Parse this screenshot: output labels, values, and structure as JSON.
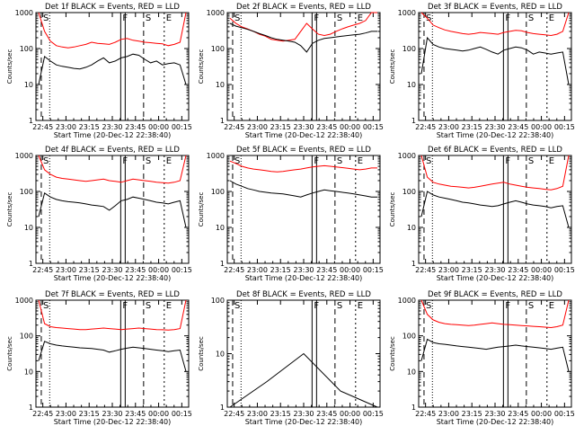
{
  "figure": {
    "background": "#ffffff",
    "axis_color": "#000000",
    "events_color": "#000000",
    "lld_color": "#ff0000"
  },
  "chart_data": [
    {
      "type": "line",
      "panel": "det-1f",
      "title": "Det 1f BLACK = Events, RED = LLD",
      "xlabel": "Start Time (20-Dec-12 22:38:40)",
      "ylabel": "Counts/sec",
      "x_ticks": [
        "22:45",
        "23:00",
        "23:15",
        "23:30",
        "23:45",
        "00:00",
        "00:15"
      ],
      "y_ticks": [
        "1",
        "10",
        "100",
        "1000"
      ],
      "ylim": [
        1,
        1000
      ],
      "yscale": "log",
      "markers": [
        "S",
        "F",
        "S",
        "E"
      ],
      "series": [
        {
          "color": "#ff0000",
          "values": [
            1000,
            300,
            160,
            120,
            110,
            105,
            110,
            120,
            130,
            150,
            140,
            135,
            130,
            150,
            180,
            190,
            170,
            160,
            150,
            145,
            140,
            135,
            120,
            130,
            150,
            1000
          ]
        },
        {
          "color": "#000000",
          "values": [
            10,
            60,
            45,
            35,
            32,
            30,
            28,
            27,
            30,
            35,
            45,
            55,
            40,
            45,
            55,
            60,
            70,
            65,
            50,
            40,
            45,
            35,
            38,
            40,
            35,
            10
          ]
        }
      ]
    },
    {
      "type": "line",
      "panel": "det-2f",
      "title": "Det 2f BLACK = Events, RED = LLD",
      "xlabel": "Start Time (20-Dec-12 22:38:40)",
      "ylabel": "Counts/sec",
      "x_ticks": [
        "22:45",
        "23:00",
        "23:15",
        "23:30",
        "23:45",
        "00:00",
        "00:15"
      ],
      "y_ticks": [
        "1",
        "10",
        "100",
        "1000"
      ],
      "ylim": [
        1,
        1000
      ],
      "yscale": "log",
      "markers": [
        "S",
        "F",
        "S",
        "E"
      ],
      "series": [
        {
          "color": "#ff0000",
          "values": [
            700,
            500,
            400,
            350,
            300,
            250,
            220,
            180,
            170,
            160,
            170,
            180,
            300,
            500,
            350,
            250,
            230,
            250,
            300,
            350,
            400,
            450,
            500,
            600,
            1000,
            1000
          ]
        },
        {
          "color": "#000000",
          "values": [
            500,
            420,
            380,
            340,
            300,
            260,
            230,
            200,
            180,
            170,
            160,
            150,
            120,
            80,
            140,
            170,
            190,
            200,
            210,
            220,
            230,
            240,
            250,
            270,
            300,
            300
          ]
        }
      ]
    },
    {
      "type": "line",
      "panel": "det-3f",
      "title": "Det 3f BLACK = Events, RED = LLD",
      "xlabel": "Start Time (20-Dec-12 22:38:40)",
      "ylabel": "Counts/sec",
      "x_ticks": [
        "22:45",
        "23:00",
        "23:15",
        "23:30",
        "23:45",
        "00:00",
        "00:15"
      ],
      "y_ticks": [
        "1",
        "10",
        "100",
        "1000"
      ],
      "ylim": [
        1,
        1000
      ],
      "yscale": "log",
      "markers": [
        "S",
        "F",
        "S",
        "E"
      ],
      "series": [
        {
          "color": "#ff0000",
          "values": [
            1000,
            700,
            450,
            380,
            330,
            300,
            280,
            260,
            250,
            260,
            280,
            270,
            260,
            250,
            280,
            300,
            320,
            310,
            280,
            260,
            250,
            240,
            230,
            250,
            300,
            1000
          ]
        },
        {
          "color": "#000000",
          "values": [
            20,
            200,
            130,
            110,
            100,
            95,
            90,
            85,
            90,
            100,
            110,
            95,
            80,
            70,
            90,
            100,
            110,
            105,
            90,
            70,
            80,
            75,
            70,
            75,
            80,
            10
          ]
        }
      ]
    },
    {
      "type": "line",
      "panel": "det-4f",
      "title": "Det 4f BLACK = Events, RED = LLD",
      "xlabel": "Start Time (20-Dec-12 22:38:40)",
      "ylabel": "Counts/sec",
      "x_ticks": [
        "22:45",
        "23:00",
        "23:15",
        "23:30",
        "23:45",
        "00:00",
        "00:15"
      ],
      "y_ticks": [
        "1",
        "10",
        "100",
        "1000"
      ],
      "ylim": [
        1,
        1000
      ],
      "yscale": "log",
      "markers": [
        "S",
        "F",
        "S",
        "E"
      ],
      "series": [
        {
          "color": "#ff0000",
          "values": [
            1000,
            400,
            300,
            250,
            230,
            220,
            210,
            200,
            190,
            200,
            210,
            220,
            200,
            190,
            180,
            200,
            220,
            210,
            200,
            190,
            180,
            175,
            170,
            180,
            200,
            1000
          ]
        },
        {
          "color": "#000000",
          "values": [
            20,
            90,
            70,
            60,
            55,
            52,
            50,
            48,
            45,
            42,
            40,
            38,
            30,
            40,
            55,
            60,
            70,
            65,
            60,
            55,
            50,
            48,
            45,
            50,
            55,
            10
          ]
        }
      ]
    },
    {
      "type": "line",
      "panel": "det-5f",
      "title": "Det 5f BLACK = Events, RED = LLD",
      "xlabel": "Start Time (20-Dec-12 22:38:40)",
      "ylabel": "Counts/sec",
      "x_ticks": [
        "22:45",
        "23:00",
        "23:15",
        "23:30",
        "23:45",
        "00:00",
        "00:15"
      ],
      "y_ticks": [
        "1",
        "10",
        "100",
        "1000"
      ],
      "ylim": [
        1,
        1000
      ],
      "yscale": "log",
      "markers": [
        "S",
        "F",
        "S",
        "E"
      ],
      "series": [
        {
          "color": "#ff0000",
          "values": [
            700,
            600,
            500,
            450,
            420,
            400,
            380,
            360,
            350,
            360,
            380,
            400,
            420,
            450,
            480,
            500,
            520,
            500,
            480,
            460,
            440,
            420,
            400,
            420,
            450,
            450
          ]
        },
        {
          "color": "#000000",
          "values": [
            200,
            160,
            140,
            120,
            110,
            100,
            95,
            90,
            88,
            85,
            80,
            75,
            70,
            80,
            90,
            100,
            110,
            105,
            100,
            95,
            90,
            85,
            80,
            75,
            70,
            70
          ]
        }
      ]
    },
    {
      "type": "line",
      "panel": "det-6f",
      "title": "Det 6f BLACK = Events, RED = LLD",
      "xlabel": "Start Time (20-Dec-12 22:38:40)",
      "ylabel": "Counts/sec",
      "x_ticks": [
        "22:45",
        "23:00",
        "23:15",
        "23:30",
        "23:45",
        "00:00",
        "00:15"
      ],
      "y_ticks": [
        "1",
        "10",
        "100",
        "1000"
      ],
      "ylim": [
        1,
        1000
      ],
      "yscale": "log",
      "markers": [
        "S",
        "F",
        "S",
        "E"
      ],
      "series": [
        {
          "color": "#ff0000",
          "values": [
            1000,
            250,
            180,
            160,
            150,
            140,
            135,
            130,
            125,
            130,
            140,
            150,
            160,
            170,
            180,
            160,
            150,
            140,
            130,
            125,
            120,
            115,
            110,
            120,
            140,
            1000
          ]
        },
        {
          "color": "#000000",
          "values": [
            20,
            100,
            80,
            70,
            65,
            60,
            55,
            50,
            48,
            45,
            42,
            40,
            38,
            40,
            45,
            50,
            55,
            50,
            45,
            42,
            40,
            38,
            35,
            38,
            40,
            10
          ]
        }
      ]
    },
    {
      "type": "line",
      "panel": "det-7f",
      "title": "Det 7f BLACK = Events, RED = LLD",
      "xlabel": "Start Time (20-Dec-12 22:38:40)",
      "ylabel": "Counts/sec",
      "x_ticks": [
        "22:45",
        "23:00",
        "23:15",
        "23:30",
        "23:45",
        "00:00",
        "00:15"
      ],
      "y_ticks": [
        "1",
        "10",
        "100",
        "1000"
      ],
      "ylim": [
        1,
        1000
      ],
      "yscale": "log",
      "markers": [
        "S",
        "F",
        "S",
        "E"
      ],
      "series": [
        {
          "color": "#ff0000",
          "values": [
            1000,
            220,
            180,
            170,
            165,
            160,
            155,
            150,
            150,
            155,
            160,
            165,
            160,
            155,
            150,
            155,
            160,
            165,
            160,
            155,
            150,
            148,
            145,
            150,
            160,
            1000
          ]
        },
        {
          "color": "#000000",
          "values": [
            20,
            70,
            60,
            55,
            52,
            50,
            48,
            46,
            45,
            44,
            42,
            40,
            35,
            38,
            42,
            45,
            48,
            46,
            44,
            42,
            40,
            38,
            36,
            38,
            40,
            10
          ]
        }
      ]
    },
    {
      "type": "line",
      "panel": "det-8f",
      "title": "Det 8f BLACK = Events, RED = LLD",
      "xlabel": "Start Time (20-Dec-12 22:38:40)",
      "ylabel": "Counts/sec",
      "x_ticks": [
        "22:45",
        "23:00",
        "23:15",
        "23:30",
        "23:45",
        "00:00",
        "00:15"
      ],
      "y_ticks": [
        "1",
        "10",
        "100"
      ],
      "ylim": [
        1,
        100
      ],
      "yscale": "log",
      "markers": [
        "S",
        "F",
        "S",
        "E"
      ],
      "series": [
        {
          "color": "#000000",
          "values": [
            1,
            3,
            10,
            2,
            1
          ]
        }
      ]
    },
    {
      "type": "line",
      "panel": "det-9f",
      "title": "Det 9f BLACK = Events, RED = LLD",
      "xlabel": "Start Time (20-Dec-12 22:38:40)",
      "ylabel": "Counts/sec",
      "x_ticks": [
        "22:45",
        "23:00",
        "23:15",
        "23:30",
        "23:45",
        "00:00",
        "00:15"
      ],
      "y_ticks": [
        "1",
        "10",
        "100",
        "1000"
      ],
      "ylim": [
        1,
        1000
      ],
      "yscale": "log",
      "markers": [
        "S",
        "F",
        "S",
        "E"
      ],
      "series": [
        {
          "color": "#ff0000",
          "values": [
            1000,
            400,
            280,
            240,
            220,
            210,
            205,
            200,
            195,
            200,
            210,
            220,
            230,
            220,
            210,
            205,
            200,
            195,
            190,
            185,
            180,
            175,
            170,
            180,
            200,
            1000
          ]
        },
        {
          "color": "#000000",
          "values": [
            20,
            80,
            65,
            60,
            58,
            55,
            52,
            50,
            48,
            46,
            44,
            42,
            45,
            48,
            50,
            52,
            55,
            52,
            50,
            48,
            46,
            44,
            42,
            45,
            48,
            10
          ]
        }
      ]
    }
  ]
}
